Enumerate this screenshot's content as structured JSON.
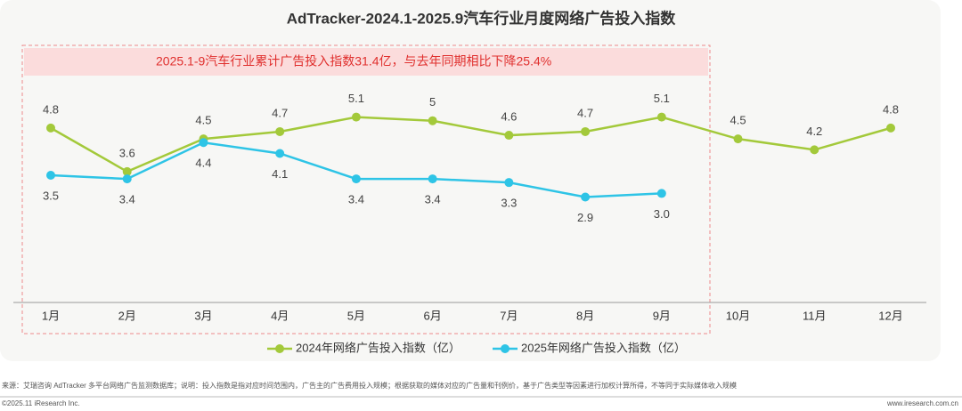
{
  "chart_data": {
    "type": "line",
    "title": "AdTracker-2024.1-2025.9汽车行业月度网络广告投入指数",
    "annotation": "2025.1-9汽车行业累计广告投入指数31.4亿，与去年同期相比下降25.4%",
    "categories": [
      "1月",
      "2月",
      "3月",
      "4月",
      "5月",
      "6月",
      "7月",
      "8月",
      "9月",
      "10月",
      "11月",
      "12月"
    ],
    "series": [
      {
        "name": "2024年网络广告投入指数（亿）",
        "color": "#a3c93a",
        "values": [
          4.8,
          3.6,
          4.5,
          4.7,
          5.1,
          5,
          4.6,
          4.7,
          5.1,
          4.5,
          4.2,
          4.8
        ]
      },
      {
        "name": "2025年网络广告投入指数（亿）",
        "color": "#2ec4e6",
        "values": [
          3.5,
          3.4,
          4.4,
          4.1,
          3.4,
          3.4,
          3.3,
          2.9,
          3.0,
          null,
          null,
          null
        ],
        "value_labels": [
          "3.5",
          "3.4",
          "4.4",
          "4.1",
          "3.4",
          "3.4",
          "3.3",
          "2.9",
          "3.0",
          null,
          null,
          null
        ]
      }
    ],
    "ylim": [
      0,
      7
    ],
    "legend": "bottom",
    "source": "来源：艾瑞咨询 AdTracker 多平台网络广告监测数据库；说明：投入指数是指对应时间范围内，广告主的广告费用投入规模；根据获取的媒体对应的广告量和刊例价，基于广告类型等因素进行加权计算所得，不等同于实际媒体收入规模",
    "copyright": "©2025.11 iResearch Inc.",
    "website": "www.iresearch.com.cn"
  }
}
